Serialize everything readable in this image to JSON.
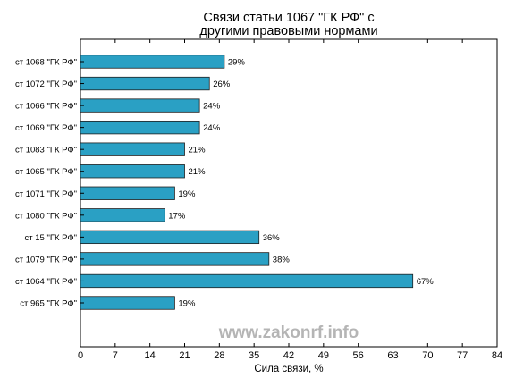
{
  "chart_data": {
    "type": "bar",
    "orientation": "horizontal",
    "title_lines": [
      "Связи статьи 1067 \"ГК РФ\" с",
      "другими правовыми нормами"
    ],
    "xlabel": "Сила связи, %",
    "ylabel": "",
    "xlim": [
      0,
      84
    ],
    "xticks": [
      0,
      7,
      14,
      21,
      28,
      35,
      42,
      49,
      56,
      63,
      70,
      77,
      84
    ],
    "grid": false,
    "bar_color": "#2aa0c4",
    "categories": [
      "ст 1068 \"ГК РФ\"",
      "ст 1072 \"ГК РФ\"",
      "ст 1066 \"ГК РФ\"",
      "ст 1069 \"ГК РФ\"",
      "ст 1083 \"ГК РФ\"",
      "ст 1065 \"ГК РФ\"",
      "ст 1071 \"ГК РФ\"",
      "ст 1080 \"ГК РФ\"",
      "ст 15 \"ГК РФ\"",
      "ст 1079 \"ГК РФ\"",
      "ст 1064 \"ГК РФ\"",
      "ст 965 \"ГК РФ\""
    ],
    "values": [
      29,
      26,
      24,
      24,
      21,
      21,
      19,
      17,
      36,
      38,
      67,
      19
    ],
    "value_labels": [
      "29%",
      "26%",
      "24%",
      "24%",
      "21%",
      "21%",
      "19%",
      "17%",
      "36%",
      "38%",
      "67%",
      "19%"
    ]
  },
  "watermark": "www.zakonrf.info"
}
